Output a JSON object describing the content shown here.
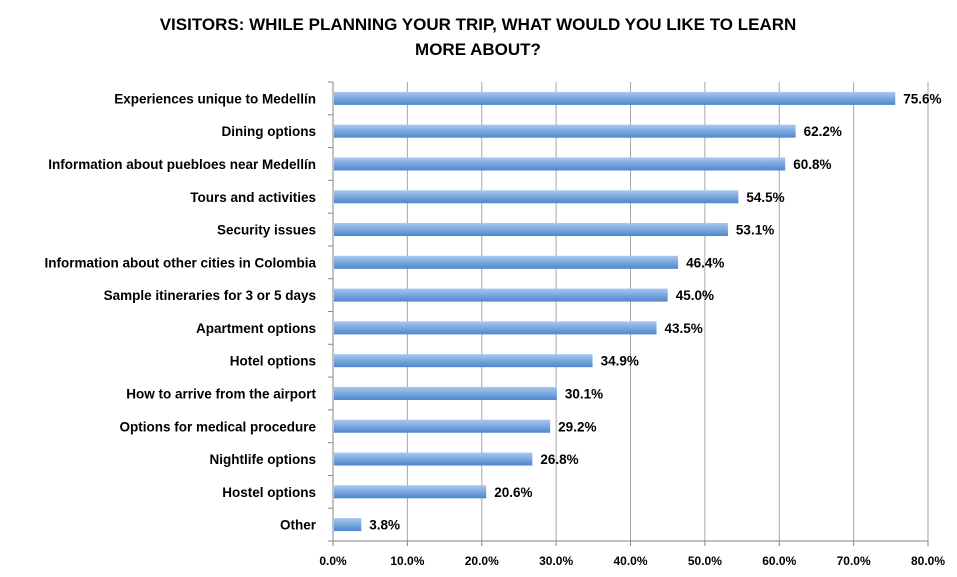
{
  "chart_data": {
    "type": "bar",
    "orientation": "horizontal",
    "title_lines": [
      "VISITORS:  WHILE PLANNING YOUR TRIP, WHAT WOULD YOU LIKE TO LEARN",
      "MORE ABOUT?"
    ],
    "xlabel": "",
    "ylabel": "",
    "xlim": [
      0,
      80
    ],
    "x_ticks": [
      "0.0%",
      "10.0%",
      "20.0%",
      "30.0%",
      "40.0%",
      "50.0%",
      "60.0%",
      "70.0%",
      "80.0%"
    ],
    "grid": "vertical",
    "legend": "none",
    "bar_color": "#6f9fd8",
    "categories": [
      "Experiences unique to Medellín",
      "Dining options",
      "Information about puebloes near Medellín",
      "Tours and activities",
      "Security issues",
      "Information about other cities in Colombia",
      "Sample itineraries for 3 or 5 days",
      "Apartment options",
      "Hotel options",
      "How to arrive from the airport",
      "Options for medical procedure",
      "Nightlife options",
      "Hostel options",
      "Other"
    ],
    "values": [
      75.6,
      62.2,
      60.8,
      54.5,
      53.1,
      46.4,
      45.0,
      43.5,
      34.9,
      30.1,
      29.2,
      26.8,
      20.6,
      3.8
    ],
    "data_labels": [
      "75.6%",
      "62.2%",
      "60.8%",
      "54.5%",
      "53.1%",
      "46.4%",
      "45.0%",
      "43.5%",
      "34.9%",
      "30.1%",
      "29.2%",
      "26.8%",
      "20.6%",
      "3.8%"
    ]
  }
}
